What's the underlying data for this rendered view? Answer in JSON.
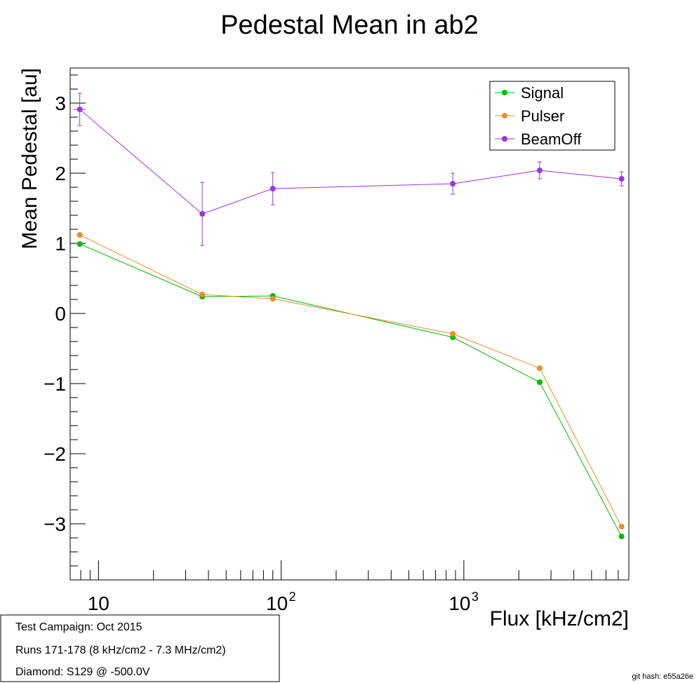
{
  "chart_data": {
    "type": "line",
    "title": "Pedestal Mean in ab2",
    "xlabel": "Flux [kHz/cm2]",
    "ylabel": "Mean Pedestal [au]",
    "xscale": "log",
    "xlim": [
      7.0,
      8000
    ],
    "ylim": [
      -3.8,
      3.5
    ],
    "x_ticks": [
      {
        "value": 10,
        "base": "10",
        "exp": ""
      },
      {
        "value": 100,
        "base": "10",
        "exp": "2"
      },
      {
        "value": 1000,
        "base": "10",
        "exp": "3"
      }
    ],
    "y_ticks": [
      -3,
      -2,
      -1,
      0,
      1,
      2,
      3
    ],
    "y_tick_labels": [
      "−3",
      "−2",
      "−1",
      "0",
      "1",
      "2",
      "3"
    ],
    "x": [
      7.9,
      37,
      90,
      870,
      2600,
      7300
    ],
    "series": [
      {
        "name": "Signal",
        "color": "#00bb00",
        "values": [
          0.99,
          0.24,
          0.25,
          -0.34,
          -0.98,
          -3.18
        ]
      },
      {
        "name": "Pulser",
        "color": "#f08c28",
        "values": [
          1.12,
          0.27,
          0.21,
          -0.29,
          -0.78,
          -3.04
        ]
      },
      {
        "name": "BeamOff",
        "color": "#9a35e6",
        "values": [
          2.91,
          1.42,
          1.78,
          1.85,
          2.04,
          1.92
        ],
        "errors": [
          0.23,
          0.45,
          0.23,
          0.15,
          0.12,
          0.1
        ],
        "x_errors": [
          0.6,
          0,
          2,
          0,
          0,
          0
        ]
      }
    ],
    "legend_position": "top-right",
    "grid": false
  },
  "info_box": {
    "lines": [
      "Test Campaign: Oct 2015",
      "Runs 171-178 (8 kHz/cm2 - 7.3 MHz/cm2)",
      "Diamond: S129 @ -500.0V"
    ]
  },
  "footer": {
    "git_hash": "git hash: e55a26e"
  }
}
